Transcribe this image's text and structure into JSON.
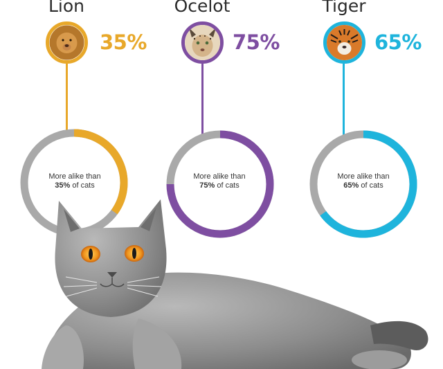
{
  "chart_data": {
    "type": "pie",
    "series": [
      {
        "name": "Lion",
        "value": 35,
        "color": "#e8a82a",
        "icon": "lion-icon"
      },
      {
        "name": "Ocelot",
        "value": 75,
        "color": "#7e4ea1",
        "icon": "ocelot-icon"
      },
      {
        "name": "Tiger",
        "value": 65,
        "color": "#1eb4dc",
        "icon": "tiger-icon"
      }
    ],
    "track_color": "#a9a9a9"
  },
  "labels": {
    "lion": {
      "title": "Lion",
      "pct": "35%",
      "line1": "More alike than",
      "bold": "35%",
      "rest": " of cats"
    },
    "ocelot": {
      "title": "Ocelot",
      "pct": "75%",
      "line1": "More alike than",
      "bold": "75%",
      "rest": " of cats"
    },
    "tiger": {
      "title": "Tiger",
      "pct": "65%",
      "line1": "More alike than",
      "bold": "65%",
      "rest": " of cats"
    }
  },
  "illustration": {
    "icon": "grey-cat-photo"
  }
}
